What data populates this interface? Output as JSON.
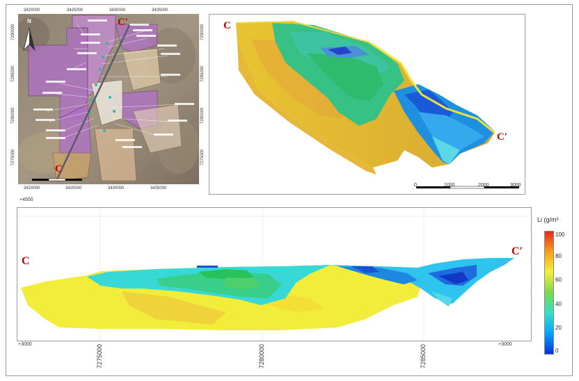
{
  "map_panel": {
    "top_ticks": [
      "3420000",
      "3425000",
      "3430000",
      "3435000"
    ],
    "bottom_ticks": [
      "3420000",
      "3425000",
      "3430000",
      "3435000"
    ],
    "left_ticks": [
      "7290000",
      "7285000",
      "7280000",
      "7275000"
    ],
    "right_ticks": [
      "7290000",
      "7285000",
      "7280000",
      "7275000"
    ],
    "label_start": "C",
    "label_end": "C′",
    "north_label": "N"
  },
  "model3d_panel": {
    "label_start": "C",
    "label_end": "C′",
    "scale_ticks": [
      "0",
      "1000",
      "2000",
      "3000"
    ]
  },
  "section_panel": {
    "elev_top": "+4500",
    "elev_bottom_left": "+3000",
    "elev_bottom_right": "+3000",
    "x_ticks": [
      "7275000",
      "7280000",
      "7285000"
    ],
    "label_start": "C",
    "label_end": "C′"
  },
  "colorbar": {
    "title": "Li (g/m³",
    "ticks": [
      "100",
      "80",
      "60",
      "40",
      "20",
      "0"
    ],
    "colors": [
      "#0032d8",
      "#00a6ff",
      "#33e0c8",
      "#7cd84a",
      "#f3ef3a",
      "#f7a21b",
      "#e8291a"
    ]
  }
}
